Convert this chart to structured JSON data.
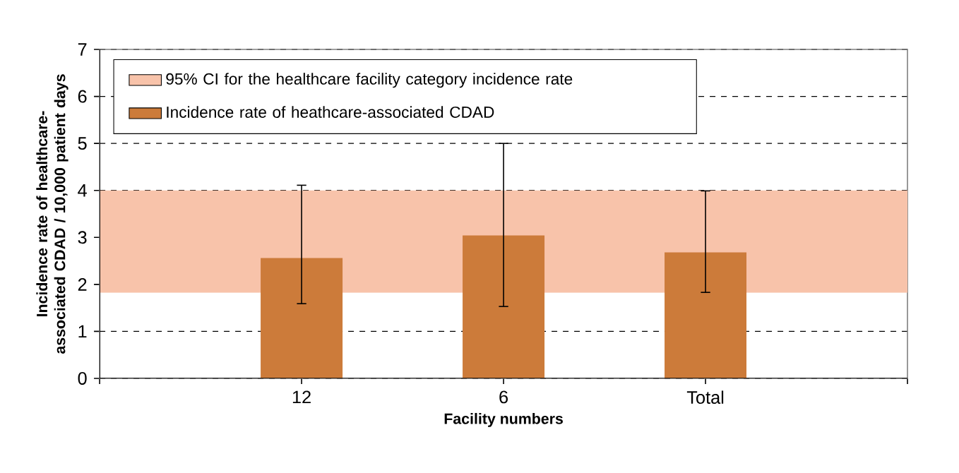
{
  "chart_data": {
    "type": "bar",
    "xlabel": "Facility numbers",
    "ylabel": "Incidence rate of healthcare-associated CDAD / 10,000 patient days",
    "categories": [
      "12",
      "6",
      "Total"
    ],
    "series": [
      {
        "name": "Incidence rate of heathcare-associated CDAD",
        "color": "#cc7b3a",
        "values": [
          2.56,
          3.04,
          2.68
        ],
        "errors": [
          [
            1.59,
            4.11
          ],
          [
            1.53,
            5.0
          ],
          [
            1.83,
            3.99
          ]
        ]
      }
    ],
    "bands": [
      {
        "axis": "y",
        "from": 1.82,
        "to": 4.0,
        "label": "95% CI for the healthcare facility category incidence rate",
        "color": "#f8c3aa"
      }
    ],
    "ylim": [
      0,
      7
    ],
    "yticks": [
      0,
      1,
      2,
      3,
      4,
      5,
      6,
      7
    ],
    "grid": "y",
    "legend": "top left"
  }
}
